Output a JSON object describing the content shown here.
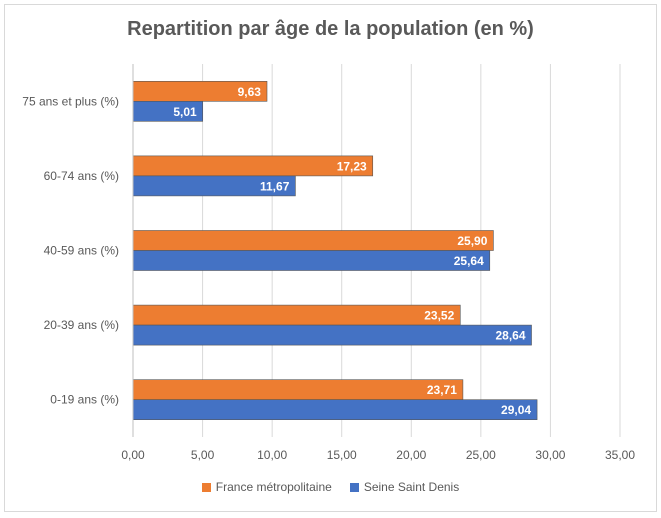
{
  "chart_data": {
    "type": "bar",
    "orientation": "horizontal",
    "title": "Repartition par âge de la population (en %)",
    "categories": [
      "0-19 ans (%)",
      "20-39 ans (%)",
      "40-59 ans (%)",
      "60-74 ans (%)",
      "75 ans et plus (%)"
    ],
    "series": [
      {
        "name": "France métropolitaine",
        "color": "#ed7d31",
        "values": [
          23.71,
          23.52,
          25.9,
          17.23,
          9.63
        ],
        "labels": [
          "23,71",
          "23,52",
          "25,90",
          "17,23",
          "9,63"
        ]
      },
      {
        "name": "Seine Saint Denis",
        "color": "#4472c4",
        "values": [
          29.04,
          28.64,
          25.64,
          11.67,
          5.01
        ],
        "labels": [
          "29,04",
          "28,64",
          "25,64",
          "11,67",
          "5,01"
        ]
      }
    ],
    "xlim": [
      0,
      35
    ],
    "xticks": [
      "0,00",
      "5,00",
      "10,00",
      "15,00",
      "20,00",
      "25,00",
      "30,00",
      "35,00"
    ],
    "legend_position": "bottom",
    "grid": true
  }
}
